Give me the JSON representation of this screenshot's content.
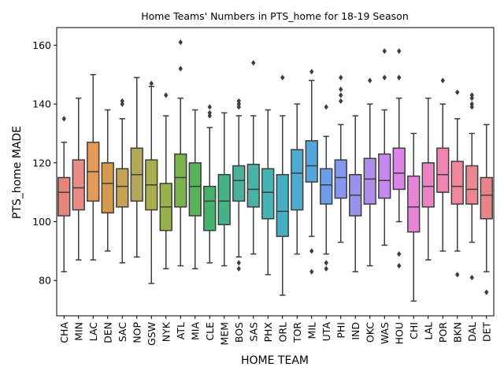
{
  "chart_data": {
    "type": "box",
    "title": "Home Teams' Numbers in PTS_home for 18-19 Season",
    "xlabel": "HOME TEAM",
    "ylabel": "PTS_home MADE",
    "ylim": [
      68,
      166
    ],
    "yticks": [
      80,
      100,
      120,
      140,
      160
    ],
    "grid": false,
    "legend": "none",
    "categories": [
      "CHA",
      "MIN",
      "LAC",
      "DEN",
      "SAC",
      "NOP",
      "GSW",
      "NYK",
      "ATL",
      "MIA",
      "CLE",
      "MEM",
      "BOS",
      "SAS",
      "PHX",
      "ORL",
      "TOR",
      "MIL",
      "UTA",
      "PHI",
      "IND",
      "OKC",
      "WAS",
      "HOU",
      "CHI",
      "LAL",
      "POR",
      "BKN",
      "DAL",
      "DET"
    ],
    "colors": [
      "#e8857b",
      "#e98a85",
      "#e59a5a",
      "#d49a4d",
      "#c6a352",
      "#b3a858",
      "#a9ad4c",
      "#97b14b",
      "#79b44c",
      "#58b458",
      "#47b16e",
      "#47b285",
      "#49b39a",
      "#48b3a6",
      "#48b2b4",
      "#49aec3",
      "#4cabd0",
      "#55a5dd",
      "#6d9fe8",
      "#8497ec",
      "#9992ec",
      "#ae8ded",
      "#c688ec",
      "#da85e6",
      "#e685d7",
      "#ec84c4",
      "#ef85b2",
      "#ef869e",
      "#ec8690",
      "#e9858a"
    ],
    "boxes": [
      {
        "min": 83,
        "q1": 102,
        "median": 110,
        "q3": 115,
        "max": 127,
        "outliers": [
          135
        ]
      },
      {
        "min": 87,
        "q1": 104,
        "median": 111.5,
        "q3": 121,
        "max": 142,
        "outliers": []
      },
      {
        "min": 87,
        "q1": 107,
        "median": 117,
        "q3": 127,
        "max": 150,
        "outliers": []
      },
      {
        "min": 90,
        "q1": 103,
        "median": 113,
        "q3": 120,
        "max": 138,
        "outliers": []
      },
      {
        "min": 86,
        "q1": 105,
        "median": 112,
        "q3": 118,
        "max": 135,
        "outliers": [
          140,
          141
        ]
      },
      {
        "min": 88,
        "q1": 107,
        "median": 116,
        "q3": 125,
        "max": 149,
        "outliers": []
      },
      {
        "min": 79,
        "q1": 104,
        "median": 112.5,
        "q3": 121,
        "max": 146,
        "outliers": [
          147
        ]
      },
      {
        "min": 84,
        "q1": 97,
        "median": 105,
        "q3": 113,
        "max": 136,
        "outliers": [
          143
        ]
      },
      {
        "min": 85,
        "q1": 105,
        "median": 115,
        "q3": 123,
        "max": 142,
        "outliers": [
          152,
          161
        ]
      },
      {
        "min": 84,
        "q1": 102,
        "median": 112,
        "q3": 120,
        "max": 138,
        "outliers": []
      },
      {
        "min": 86,
        "q1": 97,
        "median": 107,
        "q3": 112,
        "max": 132,
        "outliers": [
          136,
          137,
          139
        ]
      },
      {
        "min": 85,
        "q1": 99,
        "median": 107,
        "q3": 116,
        "max": 137,
        "outliers": []
      },
      {
        "min": 88,
        "q1": 107,
        "median": 114,
        "q3": 119,
        "max": 136,
        "outliers": [
          84,
          86,
          139,
          140,
          141
        ]
      },
      {
        "min": 89,
        "q1": 105,
        "median": 111,
        "q3": 119.5,
        "max": 136,
        "outliers": [
          154
        ]
      },
      {
        "min": 82,
        "q1": 101,
        "median": 110,
        "q3": 118,
        "max": 138,
        "outliers": []
      },
      {
        "min": 75,
        "q1": 95,
        "median": 103.5,
        "q3": 116,
        "max": 136,
        "outliers": [
          149
        ]
      },
      {
        "min": 89,
        "q1": 104,
        "median": 116.5,
        "q3": 124.5,
        "max": 140,
        "outliers": []
      },
      {
        "min": 95,
        "q1": 113.5,
        "median": 119,
        "q3": 127.5,
        "max": 148,
        "outliers": [
          83,
          90,
          151
        ]
      },
      {
        "min": 89,
        "q1": 106,
        "median": 112.5,
        "q3": 118,
        "max": 129,
        "outliers": [
          84,
          86,
          139
        ]
      },
      {
        "min": 93,
        "q1": 108,
        "median": 115,
        "q3": 121,
        "max": 133,
        "outliers": [
          141,
          143,
          145,
          149
        ]
      },
      {
        "min": 83,
        "q1": 102,
        "median": 109,
        "q3": 116,
        "max": 136,
        "outliers": []
      },
      {
        "min": 85,
        "q1": 106,
        "median": 114.5,
        "q3": 121.5,
        "max": 140,
        "outliers": [
          148
        ]
      },
      {
        "min": 92,
        "q1": 108,
        "median": 114,
        "q3": 123,
        "max": 138,
        "outliers": [
          149,
          158
        ]
      },
      {
        "min": 100,
        "q1": 111,
        "median": 116.5,
        "q3": 125,
        "max": 142,
        "outliers": [
          85,
          89,
          149,
          158
        ]
      },
      {
        "min": 73,
        "q1": 96.5,
        "median": 105,
        "q3": 115.5,
        "max": 130,
        "outliers": []
      },
      {
        "min": 87,
        "q1": 105,
        "median": 112,
        "q3": 120,
        "max": 142,
        "outliers": []
      },
      {
        "min": 90,
        "q1": 110,
        "median": 116,
        "q3": 125,
        "max": 140,
        "outliers": [
          148
        ]
      },
      {
        "min": 90,
        "q1": 106,
        "median": 112,
        "q3": 120.5,
        "max": 135,
        "outliers": [
          82,
          144
        ]
      },
      {
        "min": 93,
        "q1": 106,
        "median": 111,
        "q3": 119,
        "max": 130,
        "outliers": [
          81,
          139,
          140,
          142,
          143
        ]
      },
      {
        "min": 83,
        "q1": 101,
        "median": 109,
        "q3": 115,
        "max": 133,
        "outliers": [
          76
        ]
      }
    ]
  }
}
